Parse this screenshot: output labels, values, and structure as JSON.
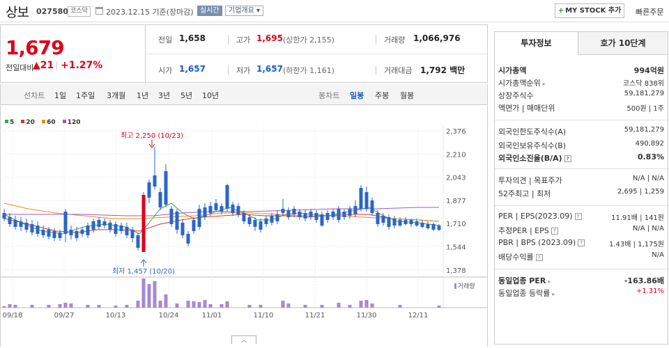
{
  "header": {
    "stock_name": "상보",
    "stock_code": "027580",
    "market": "코스닥",
    "date_text": "2023.12.15 기준(장마감)",
    "realtime_label": "실시간",
    "company_label": "기업개요",
    "mystock_label": "MY STOCK 추가",
    "quick_order_label": "빠른주문"
  },
  "price": {
    "current": "1,679",
    "change_label": "전일대비",
    "change_amount": "21",
    "change_pct": "+1.27%"
  },
  "stats": {
    "prev_close_label": "전일",
    "prev_close": "1,658",
    "high_label": "고가",
    "high": "1,695",
    "upper_limit": "(상한가 2,155)",
    "volume_label": "거래량",
    "volume": "1,066,976",
    "open_label": "시가",
    "open": "1,657",
    "low_label": "저가",
    "low": "1,657",
    "lower_limit": "(하한가 1,161)",
    "amount_label": "거래대금",
    "amount": "1,792 백만"
  },
  "period_tabs": {
    "line_label": "선차트",
    "line_items": [
      "1일",
      "1주일",
      "3개월",
      "1년",
      "3년",
      "5년",
      "10년"
    ],
    "candle_label": "봉차트",
    "candle_items": [
      "일봉",
      "주봉",
      "월봉"
    ],
    "active_candle": "일봉"
  },
  "legend": [
    {
      "label": "5",
      "color": "#3aaa3a"
    },
    {
      "label": "20",
      "color": "#e03030"
    },
    {
      "label": "60",
      "color": "#e88a1a"
    },
    {
      "label": "120",
      "color": "#9a59c8"
    }
  ],
  "chart_data": {
    "type": "candlestick",
    "y_ticks": [
      "2,376",
      "2,210",
      "2,043",
      "1,877",
      "1,710",
      "1,544",
      "1,378"
    ],
    "x_ticks": [
      "09/18",
      "09/27",
      "10/13",
      "10/24",
      "11/01",
      "11/10",
      "11/21",
      "11/30",
      "12/11"
    ],
    "annotations": {
      "high_text": "최고 2,250 (10/23)",
      "low_text": "최저 1,457 (10/20)"
    },
    "volume_label": "거래량",
    "collapse_symbol": "︿"
  },
  "right_panel": {
    "tabs": [
      "투자정보",
      "호가 10단계"
    ],
    "rows": [
      {
        "label": "시가총액",
        "value": "994억원",
        "bold": true
      },
      {
        "label": "시가총액순위",
        "value": "코스닥 838위",
        "arrow": true
      },
      {
        "label": "상장주식수",
        "value": "59,181,279"
      },
      {
        "label": "액면가 | 매매단위",
        "value": "500원 | 1주"
      },
      {
        "label": "외국인한도주식수(A)",
        "value": "59,181,279"
      },
      {
        "label": "외국인보유주식수(B)",
        "value": "490,892"
      },
      {
        "label": "외국인소진율(B/A)",
        "value": "0.83%",
        "bold": true,
        "q": true
      },
      {
        "label": "투자의견 | 목표주가",
        "value": "N/A | N/A"
      },
      {
        "label": "52주최고 | 최저",
        "value": "2,695 | 1,259"
      },
      {
        "label": "PER | EPS(2023.09)",
        "value": "11.91배 | 141원",
        "q": true
      },
      {
        "label": "추정PER | EPS",
        "value": "N/A | N/A",
        "q": true
      },
      {
        "label": "PBR | BPS (2023.09)",
        "value": "1.43배 | 1,175원",
        "q": true
      },
      {
        "label": "배당수익률",
        "value": "N/A",
        "q": true
      },
      {
        "label": "동일업종 PER",
        "value": "-163.86배",
        "bold": true,
        "arrow": true
      },
      {
        "label": "동일업종 등락률",
        "value": "+1.31%",
        "arrow": true,
        "red": true
      }
    ]
  }
}
